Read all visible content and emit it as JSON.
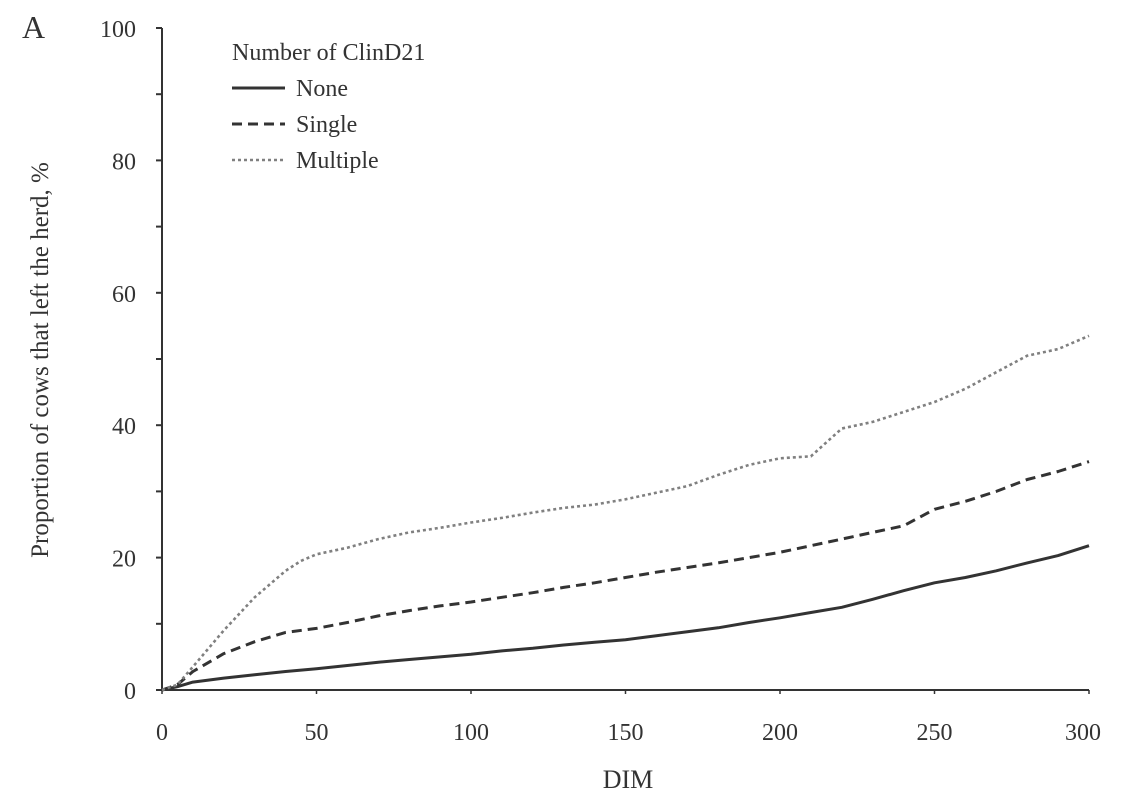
{
  "panel_label": "A",
  "chart_data": {
    "type": "line",
    "title": "",
    "xlabel": "DIM",
    "ylabel": "Proportion of cows that left the herd, %",
    "xlim": [
      0,
      300
    ],
    "ylim": [
      0,
      100
    ],
    "x_ticks": [
      0,
      50,
      100,
      150,
      200,
      250,
      300
    ],
    "x_tick_labels": [
      "0",
      "50",
      "100",
      "150",
      "200",
      "250",
      "300"
    ],
    "y_ticks": [
      0,
      20,
      40,
      60,
      80,
      100
    ],
    "y_tick_labels": [
      "0",
      "20",
      "40",
      "60",
      "80",
      "100"
    ],
    "y_minor_ticks": [
      10,
      30,
      50,
      70,
      90
    ],
    "grid": false,
    "legend": {
      "title": "Number of ClinD21",
      "placement": "top-left"
    },
    "series": [
      {
        "name": "None",
        "line_style": "solid",
        "x": [
          0,
          5,
          10,
          20,
          30,
          40,
          50,
          60,
          70,
          80,
          90,
          100,
          110,
          120,
          130,
          140,
          150,
          160,
          170,
          180,
          190,
          200,
          210,
          220,
          230,
          240,
          250,
          260,
          270,
          280,
          290,
          300
        ],
        "y": [
          0,
          0.5,
          1.2,
          1.8,
          2.3,
          2.8,
          3.2,
          3.7,
          4.2,
          4.6,
          5.0,
          5.4,
          5.9,
          6.3,
          6.8,
          7.2,
          7.6,
          8.2,
          8.8,
          9.4,
          10.2,
          10.9,
          11.7,
          12.5,
          13.7,
          15.0,
          16.2,
          17.0,
          18.0,
          19.2,
          20.3,
          21.8
        ]
      },
      {
        "name": "Single",
        "line_style": "dashed",
        "x": [
          0,
          5,
          10,
          20,
          30,
          40,
          50,
          60,
          70,
          80,
          90,
          100,
          110,
          120,
          130,
          140,
          150,
          160,
          170,
          180,
          190,
          200,
          210,
          220,
          230,
          240,
          250,
          260,
          270,
          280,
          290,
          300
        ],
        "y": [
          0,
          0.8,
          2.8,
          5.5,
          7.3,
          8.7,
          9.3,
          10.2,
          11.2,
          12.0,
          12.7,
          13.3,
          14.0,
          14.7,
          15.5,
          16.2,
          17.0,
          17.8,
          18.5,
          19.2,
          20.0,
          20.8,
          21.8,
          22.8,
          23.8,
          24.8,
          27.3,
          28.5,
          30.0,
          31.8,
          33.0,
          34.5
        ]
      },
      {
        "name": "Multiple",
        "line_style": "dotted",
        "x": [
          0,
          5,
          10,
          20,
          30,
          40,
          45,
          50,
          60,
          70,
          80,
          90,
          100,
          110,
          120,
          130,
          140,
          150,
          160,
          170,
          180,
          190,
          200,
          210,
          220,
          230,
          240,
          250,
          260,
          270,
          280,
          290,
          300
        ],
        "y": [
          0,
          0.8,
          3.5,
          9.0,
          14.0,
          18.0,
          19.5,
          20.5,
          21.5,
          22.8,
          23.8,
          24.5,
          25.3,
          26.0,
          26.8,
          27.5,
          28.0,
          28.8,
          29.8,
          30.8,
          32.5,
          34.0,
          35.0,
          35.3,
          39.5,
          40.5,
          42.0,
          43.5,
          45.5,
          48.0,
          50.5,
          51.5,
          53.5
        ]
      }
    ]
  }
}
